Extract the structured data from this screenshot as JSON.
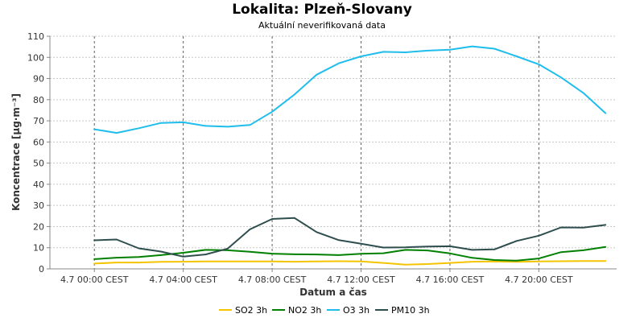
{
  "chart_data": {
    "type": "line",
    "title": "Lokalita: Plzeň-Slovany",
    "subtitle": "Aktuální neverifikovaná data",
    "xlabel": "Datum a čas",
    "ylabel": "Koncentrace [µg·m⁻³]",
    "x_unit": "hour",
    "x_start_label": "4.7 00:00 CEST",
    "xlim": [
      -2,
      23.5
    ],
    "ylim": [
      0,
      110
    ],
    "yticks": [
      0,
      10,
      20,
      30,
      40,
      50,
      60,
      70,
      80,
      90,
      100,
      110
    ],
    "xticks": [
      {
        "hour": 0,
        "label": "4.7 00:00 CEST"
      },
      {
        "hour": 4,
        "label": "4.7 04:00 CEST"
      },
      {
        "hour": 8,
        "label": "4.7 08:00 CEST"
      },
      {
        "hour": 12,
        "label": "4.7 12:00 CEST"
      },
      {
        "hour": 16,
        "label": "4.7 16:00 CEST"
      },
      {
        "hour": 20,
        "label": "4.7 20:00 CEST"
      }
    ],
    "x": [
      0,
      1,
      2,
      3,
      4,
      5,
      6,
      7,
      8,
      9,
      10,
      11,
      12,
      13,
      14,
      15,
      16,
      17,
      18,
      19,
      20,
      21,
      22,
      23
    ],
    "grid": true,
    "legend_position": "bottom",
    "series": [
      {
        "name": "SO2 3h",
        "color": "#f5c400",
        "values": [
          2.5,
          3,
          3,
          3.3,
          3.4,
          3.5,
          3.5,
          3.5,
          3.5,
          3.4,
          3.5,
          3.6,
          3.5,
          2.8,
          2,
          2.3,
          2.8,
          3.4,
          3.5,
          3.3,
          3.5,
          3.6,
          3.7,
          3.7
        ]
      },
      {
        "name": "NO2 3h",
        "color": "#008000",
        "values": [
          4.6,
          5.3,
          5.6,
          6.5,
          7.6,
          9,
          8.8,
          8.1,
          7.2,
          6.9,
          6.8,
          6.5,
          7.1,
          7.4,
          9,
          8.7,
          7.3,
          5.2,
          4.2,
          3.9,
          4.9,
          7.9,
          8.8,
          10.4
        ]
      },
      {
        "name": "O3 3h",
        "color": "#1fbdec",
        "values": [
          66,
          64.3,
          66.5,
          69,
          69.3,
          67.6,
          67.2,
          68,
          74.3,
          82.4,
          91.8,
          97.2,
          100.5,
          102.6,
          102.4,
          103.2,
          103.6,
          105.2,
          104.1,
          100.5,
          96.7,
          90.5,
          83.2,
          73.6
        ]
      },
      {
        "name": "PM10 3h",
        "color": "#2e4e4e",
        "values": [
          13.5,
          13.9,
          9.7,
          8.2,
          5.8,
          6.8,
          9.6,
          18.7,
          23.6,
          24.1,
          17.4,
          13.6,
          11.9,
          10.1,
          10.2,
          10.6,
          10.7,
          9,
          9.2,
          13.2,
          15.7,
          19.6,
          19.5,
          20.8
        ]
      }
    ]
  }
}
